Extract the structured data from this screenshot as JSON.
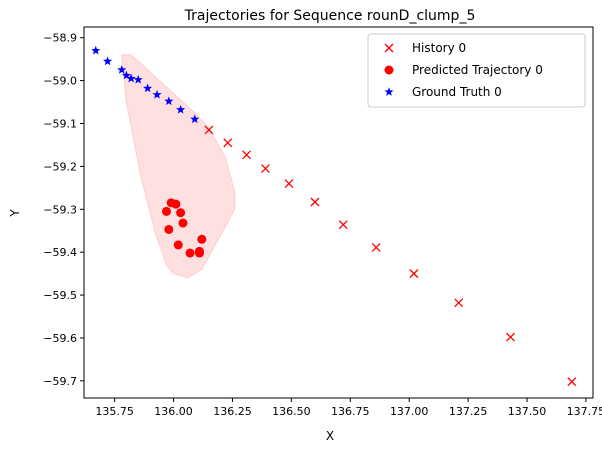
{
  "chart_data": {
    "type": "scatter",
    "title": "Trajectories for Sequence rounD_clump_5",
    "xlabel": "X",
    "ylabel": "Y",
    "xlim": [
      135.62,
      137.78
    ],
    "ylim": [
      -59.74,
      -58.875
    ],
    "grid": false,
    "legend_position": "top-right",
    "x_ticks": [
      135.75,
      136.0,
      136.25,
      136.5,
      136.75,
      137.0,
      137.25,
      137.5,
      137.75
    ],
    "x_tick_labels": [
      "135.75",
      "136.00",
      "136.25",
      "136.50",
      "136.75",
      "137.00",
      "137.25",
      "137.50",
      "137.75"
    ],
    "y_ticks": [
      -58.9,
      -59.0,
      -59.1,
      -59.2,
      -59.3,
      -59.4,
      -59.5,
      -59.6,
      -59.7
    ],
    "y_tick_labels": [
      "−58.9",
      "−59.0",
      "−59.1",
      "−59.2",
      "−59.3",
      "−59.4",
      "−59.5",
      "−59.6",
      "−59.7"
    ],
    "uncertainty_region": {
      "color": "#ffcccc",
      "x": [
        135.78,
        135.82,
        135.9,
        136.0,
        136.08,
        136.15,
        136.22,
        136.26,
        136.26,
        136.2,
        136.12,
        136.06,
        136.0,
        135.97,
        135.92,
        135.86,
        135.8
      ],
      "y": [
        -58.94,
        -58.94,
        -58.98,
        -59.03,
        -59.07,
        -59.11,
        -59.18,
        -59.26,
        -59.3,
        -59.36,
        -59.44,
        -59.46,
        -59.45,
        -59.43,
        -59.35,
        -59.22,
        -59.05
      ]
    },
    "series": [
      {
        "name": "History 0",
        "marker": "x",
        "color": "#ff0000",
        "x": [
          136.15,
          136.23,
          136.31,
          136.39,
          136.49,
          136.6,
          136.72,
          136.86,
          137.02,
          137.21,
          137.43,
          137.69
        ],
        "y": [
          -59.115,
          -59.145,
          -59.173,
          -59.205,
          -59.24,
          -59.283,
          -59.336,
          -59.389,
          -59.45,
          -59.518,
          -59.598,
          -59.702
        ]
      },
      {
        "name": "Predicted Trajectory 0",
        "marker": "o",
        "color": "#ff0000",
        "x": [
          135.99,
          136.01,
          135.97,
          136.03,
          136.04,
          135.98,
          136.12,
          136.02,
          136.11,
          136.07,
          136.11
        ],
        "y": [
          -59.285,
          -59.288,
          -59.305,
          -59.308,
          -59.332,
          -59.347,
          -59.37,
          -59.383,
          -59.398,
          -59.402,
          -59.402
        ]
      },
      {
        "name": "Ground Truth 0",
        "marker": "*",
        "color": "#0000ff",
        "x": [
          135.67,
          135.72,
          135.78,
          135.8,
          135.82,
          135.85,
          135.89,
          135.93,
          135.98,
          136.03,
          136.09
        ],
        "y": [
          -58.93,
          -58.955,
          -58.975,
          -58.988,
          -58.995,
          -58.998,
          -59.018,
          -59.033,
          -59.048,
          -59.068,
          -59.09
        ]
      }
    ]
  }
}
